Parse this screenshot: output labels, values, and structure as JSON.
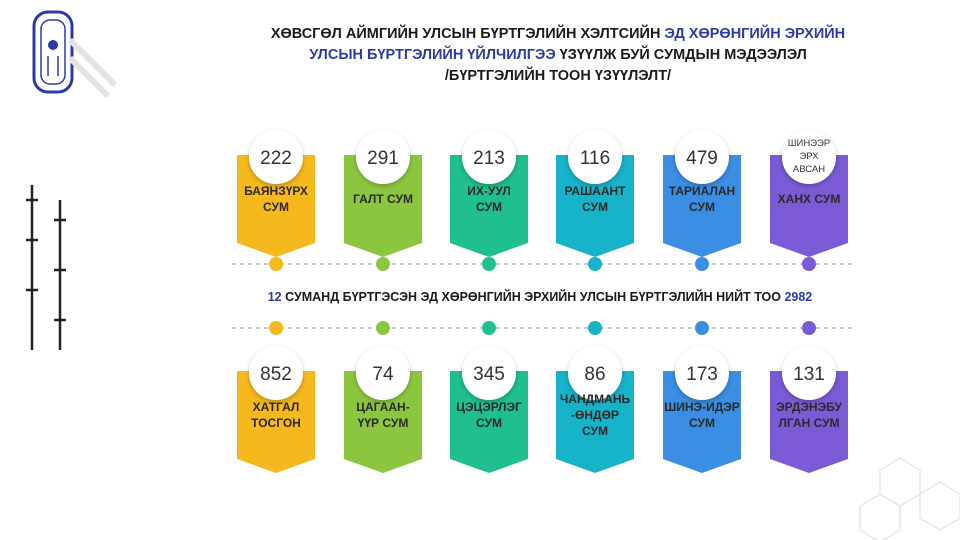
{
  "header": {
    "title_lines": [
      [
        {
          "text": "ХӨВСГӨЛ АЙМГИЙН УЛСЫН БҮРТГЭЛИЙН ХЭЛТСИЙН ",
          "highlight": false
        },
        {
          "text": "ЭД ХӨРӨНГИЙН ЭРХИЙН",
          "highlight": true
        }
      ],
      [
        {
          "text": "УЛСЫН БҮРТГЭЛИЙН ҮЙЛЧИЛГЭЭ",
          "highlight": true
        },
        {
          "text": " ҮЗҮҮЛЖ БУЙ СУМДЫН МЭДЭЭЛЭЛ",
          "highlight": false
        }
      ],
      [
        {
          "text": "/БҮРТГЭЛИЙН ТООН ҮЗҮҮЛЭЛТ/",
          "highlight": false
        }
      ]
    ]
  },
  "top_row": [
    {
      "value": "222",
      "label": [
        "БАЯНЗҮРХ",
        "СУМ"
      ],
      "color": "#f6b91d"
    },
    {
      "value": "291",
      "label": [
        "ГАЛТ СУМ"
      ],
      "color": "#8cc63f"
    },
    {
      "value": "213",
      "label": [
        "ИХ-УУЛ",
        "СУМ"
      ],
      "color": "#1fbf8f"
    },
    {
      "value": "116",
      "label": [
        "РАШААНТ",
        "СУМ"
      ],
      "color": "#17b3c8"
    },
    {
      "value": "479",
      "label": [
        "ТАРИАЛАН",
        "СУМ"
      ],
      "color": "#3a8ee3"
    },
    {
      "value_lines": [
        "ШИНЭЭР",
        "ЭРХ",
        "АВСАН"
      ],
      "label": [
        "ХАНХ СУМ"
      ],
      "color": "#7a5bd5"
    }
  ],
  "total": [
    {
      "text": "12",
      "highlight": true
    },
    {
      "text": " СУМАНД БҮРТГЭСЭН ЭД ХӨРӨНГИЙН ЭРХИЙН УЛСЫН БҮРТГЭЛИЙН НИЙТ ТОО ",
      "highlight": false
    },
    {
      "text": "2982",
      "highlight": true
    }
  ],
  "bottom_row": [
    {
      "value": "852",
      "label": [
        "ХАТГАЛ",
        "ТОСГОН"
      ],
      "color": "#f6b91d"
    },
    {
      "value": "74",
      "label": [
        "ЦАГААН-",
        "ҮҮР СУМ"
      ],
      "color": "#8cc63f"
    },
    {
      "value": "345",
      "label": [
        "ЦЭЦЭРЛЭГ",
        "СУМ"
      ],
      "color": "#1fbf8f"
    },
    {
      "value": "86",
      "label": [
        "ЧАНДМАНЬ",
        "-ӨНДӨР",
        "СУМ"
      ],
      "color": "#17b3c8"
    },
    {
      "value": "173",
      "label": [
        "ШИНЭ-ИДЭР",
        "СУМ"
      ],
      "color": "#3a8ee3"
    },
    {
      "value": "131",
      "label": [
        "ЭРДЭНЭБУ",
        "ЛГАН СУМ"
      ],
      "color": "#7a5bd5"
    }
  ]
}
